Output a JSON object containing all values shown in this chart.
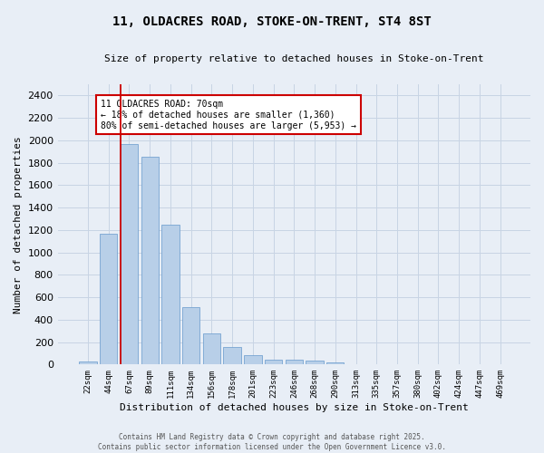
{
  "title_line1": "11, OLDACRES ROAD, STOKE-ON-TRENT, ST4 8ST",
  "title_line2": "Size of property relative to detached houses in Stoke-on-Trent",
  "xlabel": "Distribution of detached houses by size in Stoke-on-Trent",
  "ylabel": "Number of detached properties",
  "categories": [
    "22sqm",
    "44sqm",
    "67sqm",
    "89sqm",
    "111sqm",
    "134sqm",
    "156sqm",
    "178sqm",
    "201sqm",
    "223sqm",
    "246sqm",
    "268sqm",
    "290sqm",
    "313sqm",
    "335sqm",
    "357sqm",
    "380sqm",
    "402sqm",
    "424sqm",
    "447sqm",
    "469sqm"
  ],
  "values": [
    25,
    1170,
    1970,
    1850,
    1250,
    510,
    275,
    155,
    85,
    45,
    45,
    35,
    15,
    5,
    5,
    5,
    5,
    3,
    3,
    2,
    1
  ],
  "bar_color": "#b8cfe8",
  "bar_edge_color": "#6699cc",
  "subject_bar_index": 2,
  "annotation_text": "11 OLDACRES ROAD: 70sqm\n← 18% of detached houses are smaller (1,360)\n80% of semi-detached houses are larger (5,953) →",
  "annotation_box_color": "#ffffff",
  "annotation_box_edge_color": "#cc0000",
  "ylim": [
    0,
    2500
  ],
  "yticks": [
    0,
    200,
    400,
    600,
    800,
    1000,
    1200,
    1400,
    1600,
    1800,
    2000,
    2200,
    2400
  ],
  "grid_color": "#c8d4e4",
  "bg_color": "#e8eef6",
  "footer_line1": "Contains HM Land Registry data © Crown copyright and database right 2025.",
  "footer_line2": "Contains public sector information licensed under the Open Government Licence v3.0."
}
